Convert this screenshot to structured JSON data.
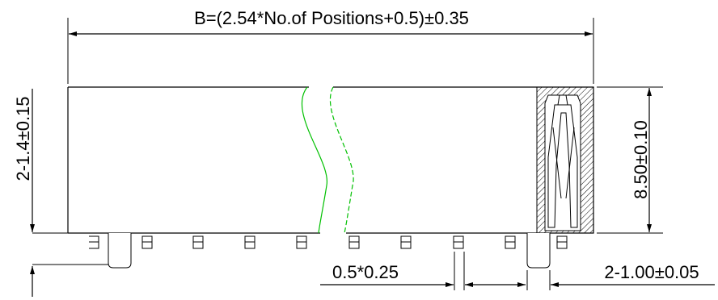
{
  "dimensions": {
    "overall_length": "B=(2.54*No.of Positions+0.5)±0.35",
    "body_height": "8.50±0.10",
    "pin_length": "2-1.4±0.15",
    "pin_width": "0.5*0.25",
    "spacing": "2-1.00±0.05"
  },
  "colors": {
    "outline": "#000000",
    "break_line": "#00c000"
  }
}
